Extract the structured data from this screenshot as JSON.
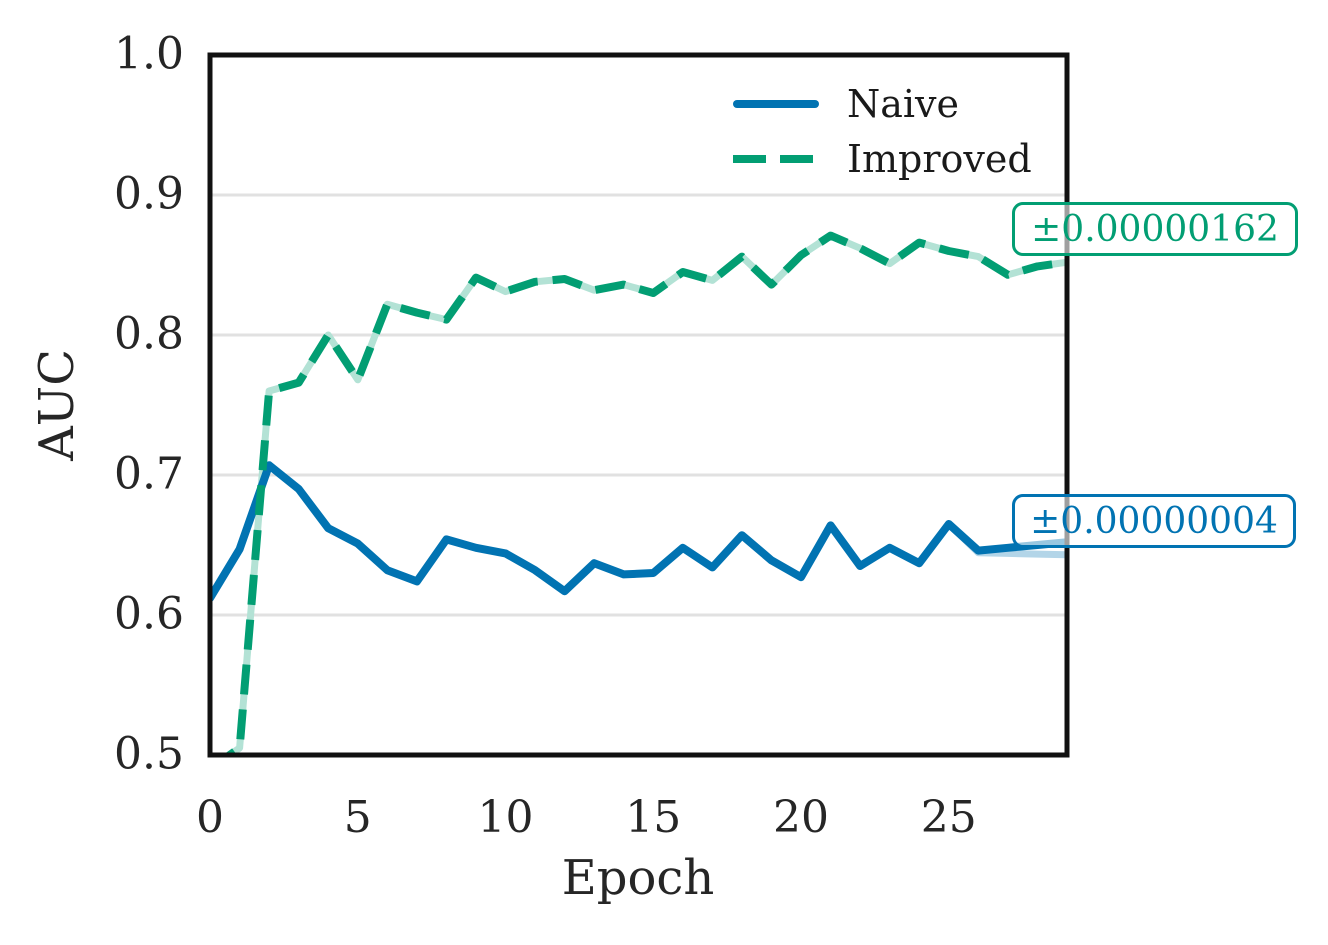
{
  "figure": {
    "background": "#ffffff",
    "text_color": "#262626",
    "spine_color": "#111111",
    "grid_color": "#e1e1e1"
  },
  "chart_data": {
    "type": "line",
    "title": "",
    "xlabel": "Epoch",
    "ylabel": "AUC",
    "xlim": [
      0,
      29
    ],
    "ylim": [
      0.5,
      1.0
    ],
    "grid": "horizontal-only",
    "legend_position": "upper-right-inside",
    "xticks": [
      0,
      5,
      10,
      15,
      20,
      25
    ],
    "xtick_labels": [
      "0",
      "5",
      "10",
      "15",
      "20",
      "25"
    ],
    "yticks": [
      0.5,
      0.6,
      0.7,
      0.8,
      0.9,
      1.0
    ],
    "ytick_labels": [
      "0.5",
      "0.6",
      "0.7",
      "0.8",
      "0.9",
      "1.0"
    ],
    "x": [
      0,
      1,
      2,
      3,
      4,
      5,
      6,
      7,
      8,
      9,
      10,
      11,
      12,
      13,
      14,
      15,
      16,
      17,
      18,
      19,
      20,
      21,
      22,
      23,
      24,
      25,
      26,
      27,
      28,
      29
    ],
    "series": [
      {
        "name": "Naive",
        "color": "#0173b2",
        "band_color": "#b3d5e8",
        "style": "solid",
        "values": [
          0.612,
          0.647,
          0.707,
          0.69,
          0.662,
          0.651,
          0.632,
          0.624,
          0.654,
          0.648,
          0.644,
          0.632,
          0.617,
          0.637,
          0.629,
          0.63,
          0.648,
          0.634,
          0.657,
          0.639,
          0.627,
          0.664,
          0.635,
          0.648,
          0.637,
          0.665,
          0.646,
          0.648,
          0.65,
          0.652
        ]
      },
      {
        "name": "Improved",
        "color": "#029e73",
        "band_color": "#b3e2d5",
        "style": "dashed",
        "values": [
          0.49,
          0.505,
          0.76,
          0.766,
          0.8,
          0.768,
          0.822,
          0.816,
          0.811,
          0.841,
          0.831,
          0.838,
          0.84,
          0.832,
          0.836,
          0.83,
          0.845,
          0.839,
          0.856,
          0.836,
          0.857,
          0.871,
          0.862,
          0.851,
          0.866,
          0.86,
          0.856,
          0.843,
          0.849,
          0.852
        ]
      }
    ],
    "annotations": [
      {
        "text": "±0.00000162",
        "series": "Improved",
        "color": "#029e73"
      },
      {
        "text": "±0.00000004",
        "series": "Naive",
        "color": "#0173b2"
      }
    ]
  }
}
